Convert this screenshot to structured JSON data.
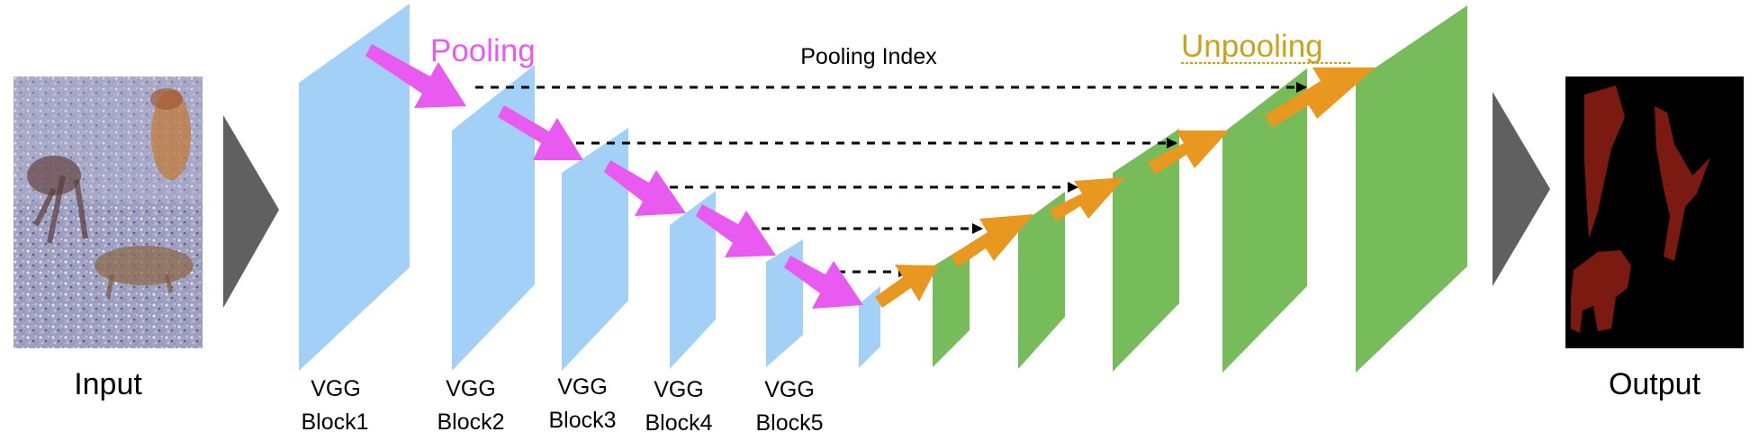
{
  "labels": {
    "input": "Input",
    "output": "Output",
    "pooling": "Pooling",
    "unpooling": "Unpooling",
    "pooling_index": "Pooling Index"
  },
  "vgg_blocks": [
    {
      "line1": "VGG",
      "line2": "Block1"
    },
    {
      "line1": "VGG",
      "line2": "Block2"
    },
    {
      "line1": "VGG",
      "line2": "Block3"
    },
    {
      "line1": "VGG",
      "line2": "Block4"
    },
    {
      "line1": "VGG",
      "line2": "Block5"
    }
  ],
  "colors": {
    "encoder": "#a3d0f6",
    "decoder": "#77bc5b",
    "pooling_arrow": "#e85af0",
    "unpooling_arrow": "#e8981e",
    "unpooling_text": "#c8a41a",
    "triangle": "#606060",
    "output_bg": "#000000",
    "output_segment": "#7a1a10"
  }
}
